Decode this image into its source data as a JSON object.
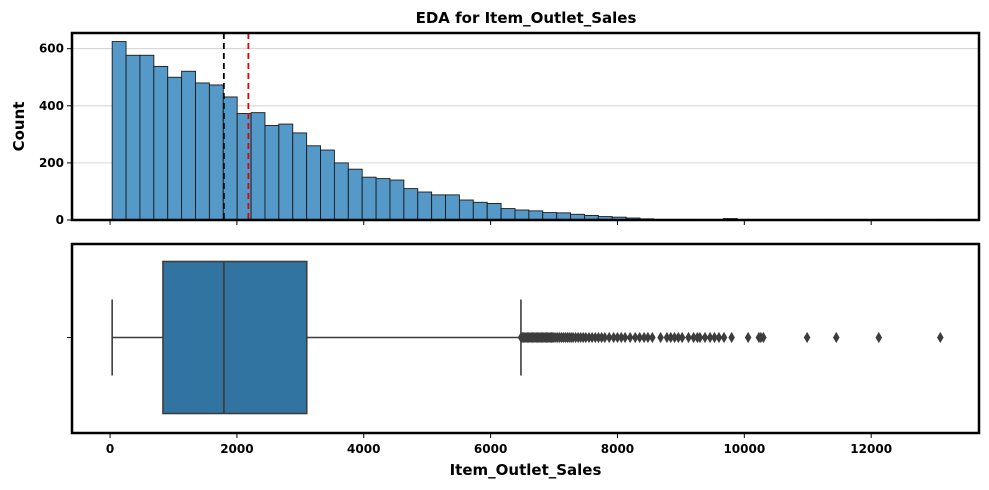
{
  "chart_data": [
    {
      "type": "histogram",
      "title": "EDA for Item_Outlet_Sales",
      "ylabel": "Count",
      "xlabel": "",
      "xlim": [
        -600,
        13700
      ],
      "ylim": [
        0,
        655
      ],
      "bin_start": 33.29,
      "bin_width": 219.0,
      "counts": [
        625,
        577,
        577,
        538,
        500,
        521,
        480,
        473,
        431,
        373,
        376,
        331,
        336,
        305,
        260,
        245,
        200,
        178,
        150,
        145,
        140,
        110,
        98,
        88,
        88,
        70,
        62,
        58,
        40,
        35,
        32,
        26,
        25,
        20,
        16,
        12,
        10,
        7,
        4,
        2,
        2,
        2,
        1,
        1,
        5,
        2,
        1,
        1,
        1,
        1,
        1,
        2,
        1,
        1,
        1,
        1,
        1,
        1,
        1,
        2
      ],
      "yticks": [
        0,
        200,
        400,
        600
      ],
      "median": 1794,
      "mean": 2181,
      "median_line_color": "#000000",
      "mean_line_color": "#e00000",
      "bar_color": "#5599c9",
      "grid": "horizontal"
    },
    {
      "type": "boxplot",
      "xlabel": "Item_Outlet_Sales",
      "xlim": [
        -600,
        13700
      ],
      "xticks": [
        0,
        2000,
        4000,
        6000,
        8000,
        10000,
        12000
      ],
      "whisker_low": 33.29,
      "q1": 834.25,
      "median": 1794.33,
      "q3": 3101.3,
      "whisker_high": 6478.23,
      "box_color": "#3274a1",
      "outliers": [
        6480,
        6500,
        6520,
        6540,
        6560,
        6580,
        6600,
        6620,
        6640,
        6660,
        6680,
        6700,
        6720,
        6740,
        6760,
        6780,
        6800,
        6820,
        6840,
        6860,
        6880,
        6900,
        6920,
        6940,
        6960,
        6980,
        7000,
        7030,
        7060,
        7090,
        7120,
        7150,
        7180,
        7210,
        7240,
        7270,
        7300,
        7340,
        7380,
        7420,
        7460,
        7500,
        7550,
        7600,
        7650,
        7700,
        7750,
        7800,
        7870,
        7940,
        8000,
        8060,
        8120,
        8200,
        8280,
        8350,
        8420,
        8480,
        8550,
        8680,
        8780,
        8840,
        8900,
        8960,
        9020,
        9120,
        9200,
        9260,
        9300,
        9380,
        9460,
        9530,
        9600,
        9680,
        9800,
        10060,
        10230,
        10260,
        10300,
        10990,
        11450,
        12120,
        13090
      ]
    }
  ]
}
